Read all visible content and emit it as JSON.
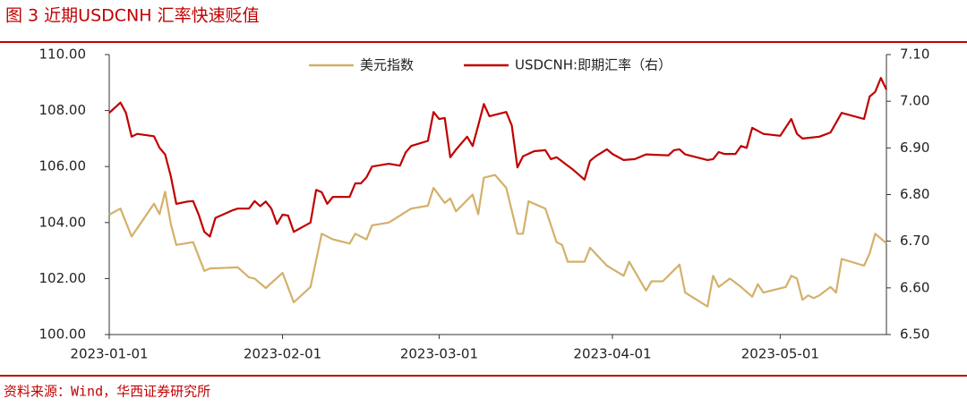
{
  "chart_data": {
    "type": "line",
    "title": "图 3 近期USDCNH 汇率快速贬值",
    "source": "资料来源：Wind，华西证券研究所",
    "xlim": [
      "2023-01-01",
      "2023-05-20"
    ],
    "xticks": [
      "2023-01-01",
      "2023-02-01",
      "2023-03-01",
      "2023-04-01",
      "2023-05-01"
    ],
    "ylim": [
      100,
      110
    ],
    "yticks": [
      {
        "value": 100,
        "label": "100.00"
      },
      {
        "value": 102,
        "label": "102.00"
      },
      {
        "value": 104,
        "label": "104.00"
      },
      {
        "value": 106,
        "label": "106.00"
      },
      {
        "value": 108,
        "label": "108.00"
      },
      {
        "value": 110,
        "label": "110.00"
      }
    ],
    "y2lim": [
      6.5,
      7.1
    ],
    "y2ticks": [
      {
        "value": 6.5,
        "label": "6.50"
      },
      {
        "value": 6.6,
        "label": "6.60"
      },
      {
        "value": 6.7,
        "label": "6.70"
      },
      {
        "value": 6.8,
        "label": "6.80"
      },
      {
        "value": 6.9,
        "label": "6.90"
      },
      {
        "value": 7.0,
        "label": "7.00"
      },
      {
        "value": 7.1,
        "label": "7.10"
      }
    ],
    "grid": false,
    "legend": "top",
    "series": [
      {
        "name": "美元指数",
        "color": "#d4b06a",
        "axis": "y",
        "x": [
          "2023-01-01",
          "2023-01-03",
          "2023-01-05",
          "2023-01-09",
          "2023-01-10",
          "2023-01-11",
          "2023-01-12",
          "2023-01-13",
          "2023-01-16",
          "2023-01-18",
          "2023-01-19",
          "2023-01-24",
          "2023-01-26",
          "2023-01-27",
          "2023-01-29",
          "2023-02-01",
          "2023-02-03",
          "2023-02-06",
          "2023-02-08",
          "2023-02-10",
          "2023-02-13",
          "2023-02-14",
          "2023-02-16",
          "2023-02-17",
          "2023-02-20",
          "2023-02-24",
          "2023-02-27",
          "2023-02-28",
          "2023-03-02",
          "2023-03-03",
          "2023-03-04",
          "2023-03-07",
          "2023-03-08",
          "2023-03-09",
          "2023-03-11",
          "2023-03-13",
          "2023-03-15",
          "2023-03-16",
          "2023-03-17",
          "2023-03-20",
          "2023-03-22",
          "2023-03-23",
          "2023-03-24",
          "2023-03-27",
          "2023-03-28",
          "2023-03-31",
          "2023-04-03",
          "2023-04-04",
          "2023-04-07",
          "2023-04-08",
          "2023-04-10",
          "2023-04-13",
          "2023-04-14",
          "2023-04-18",
          "2023-04-19",
          "2023-04-20",
          "2023-04-22",
          "2023-04-24",
          "2023-04-26",
          "2023-04-27",
          "2023-04-28",
          "2023-05-02",
          "2023-05-03",
          "2023-05-04",
          "2023-05-05",
          "2023-05-06",
          "2023-05-07",
          "2023-05-08",
          "2023-05-10",
          "2023-05-11",
          "2023-05-12",
          "2023-05-16",
          "2023-05-17",
          "2023-05-18",
          "2023-05-20"
        ],
        "values": [
          104.28,
          104.5,
          103.5,
          104.67,
          104.3,
          105.1,
          103.96,
          103.2,
          103.3,
          102.27,
          102.36,
          102.4,
          102.04,
          102.0,
          101.66,
          102.2,
          101.15,
          101.7,
          103.6,
          103.4,
          103.25,
          103.6,
          103.4,
          103.9,
          104.0,
          104.5,
          104.6,
          105.24,
          104.7,
          104.86,
          104.4,
          105.0,
          104.3,
          105.6,
          105.7,
          105.24,
          103.6,
          103.6,
          104.76,
          104.5,
          103.3,
          103.2,
          102.6,
          102.6,
          103.1,
          102.46,
          102.1,
          102.6,
          101.57,
          101.9,
          101.9,
          102.5,
          101.5,
          101.0,
          102.1,
          101.7,
          102.0,
          101.7,
          101.35,
          101.8,
          101.5,
          101.7,
          102.1,
          102.0,
          101.24,
          101.4,
          101.3,
          101.4,
          101.7,
          101.5,
          102.7,
          102.46,
          102.9,
          103.6,
          103.26
        ]
      },
      {
        "name": "USDCNH:即期汇率（右）",
        "color": "#c00000",
        "axis": "y2",
        "x": [
          "2023-01-01",
          "2023-01-03",
          "2023-01-04",
          "2023-01-05",
          "2023-01-06",
          "2023-01-09",
          "2023-01-10",
          "2023-01-11",
          "2023-01-12",
          "2023-01-13",
          "2023-01-15",
          "2023-01-16",
          "2023-01-17",
          "2023-01-18",
          "2023-01-19",
          "2023-01-20",
          "2023-01-23",
          "2023-01-24",
          "2023-01-26",
          "2023-01-27",
          "2023-01-28",
          "2023-01-29",
          "2023-01-30",
          "2023-01-31",
          "2023-02-01",
          "2023-02-02",
          "2023-02-03",
          "2023-02-06",
          "2023-02-07",
          "2023-02-08",
          "2023-02-09",
          "2023-02-10",
          "2023-02-13",
          "2023-02-14",
          "2023-02-15",
          "2023-02-16",
          "2023-02-17",
          "2023-02-20",
          "2023-02-22",
          "2023-02-23",
          "2023-02-24",
          "2023-02-27",
          "2023-02-28",
          "2023-03-01",
          "2023-03-02",
          "2023-03-03",
          "2023-03-04",
          "2023-03-06",
          "2023-03-07",
          "2023-03-08",
          "2023-03-09",
          "2023-03-10",
          "2023-03-13",
          "2023-03-14",
          "2023-03-15",
          "2023-03-16",
          "2023-03-18",
          "2023-03-20",
          "2023-03-21",
          "2023-03-22",
          "2023-03-24",
          "2023-03-25",
          "2023-03-27",
          "2023-03-28",
          "2023-03-29",
          "2023-03-31",
          "2023-04-01",
          "2023-04-03",
          "2023-04-05",
          "2023-04-07",
          "2023-04-11",
          "2023-04-12",
          "2023-04-13",
          "2023-04-14",
          "2023-04-18",
          "2023-04-19",
          "2023-04-20",
          "2023-04-21",
          "2023-04-23",
          "2023-04-24",
          "2023-04-25",
          "2023-04-26",
          "2023-04-28",
          "2023-05-01",
          "2023-05-03",
          "2023-05-04",
          "2023-05-05",
          "2023-05-08",
          "2023-05-10",
          "2023-05-11",
          "2023-05-12",
          "2023-05-16",
          "2023-05-17",
          "2023-05-18",
          "2023-05-19",
          "2023-05-20"
        ],
        "values": [
          6.975,
          6.997,
          6.975,
          6.924,
          6.93,
          6.925,
          6.9,
          6.886,
          6.84,
          6.78,
          6.785,
          6.786,
          6.757,
          6.72,
          6.71,
          6.75,
          6.766,
          6.77,
          6.77,
          6.786,
          6.775,
          6.785,
          6.77,
          6.737,
          6.757,
          6.755,
          6.72,
          6.74,
          6.81,
          6.805,
          6.78,
          6.795,
          6.795,
          6.824,
          6.824,
          6.837,
          6.86,
          6.866,
          6.862,
          6.89,
          6.904,
          6.915,
          6.977,
          6.962,
          6.964,
          6.88,
          6.896,
          6.924,
          6.904,
          6.948,
          6.994,
          6.968,
          6.977,
          6.948,
          6.858,
          6.882,
          6.893,
          6.895,
          6.876,
          6.88,
          6.862,
          6.853,
          6.832,
          6.872,
          6.882,
          6.897,
          6.887,
          6.874,
          6.876,
          6.886,
          6.884,
          6.895,
          6.897,
          6.886,
          6.874,
          6.876,
          6.891,
          6.887,
          6.887,
          6.904,
          6.9,
          6.943,
          6.93,
          6.926,
          6.962,
          6.93,
          6.92,
          6.924,
          6.933,
          6.954,
          6.975,
          6.962,
          7.01,
          7.02,
          7.05,
          7.025
        ]
      }
    ]
  }
}
